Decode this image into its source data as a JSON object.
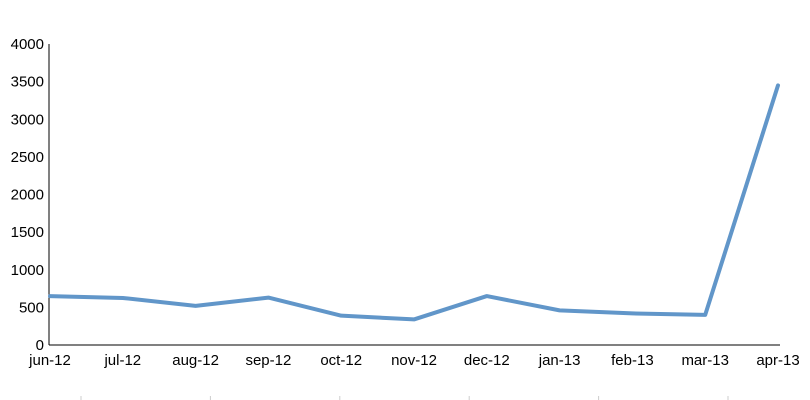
{
  "chart_data": {
    "type": "line",
    "title": "",
    "xlabel": "",
    "ylabel": "",
    "categories": [
      "jun-12",
      "jul-12",
      "aug-12",
      "sep-12",
      "oct-12",
      "nov-12",
      "dec-12",
      "jan-13",
      "feb-13",
      "mar-13",
      "apr-13"
    ],
    "series": [
      {
        "values": [
          650,
          625,
          520,
          630,
          390,
          340,
          650,
          460,
          420,
          400,
          3450
        ],
        "color": "#6196c9"
      }
    ],
    "ylim": [
      0,
      4000
    ],
    "yticks": [
      0,
      500,
      1000,
      1500,
      2000,
      2500,
      3000,
      3500,
      4000
    ],
    "grid": false,
    "legend": "none"
  }
}
